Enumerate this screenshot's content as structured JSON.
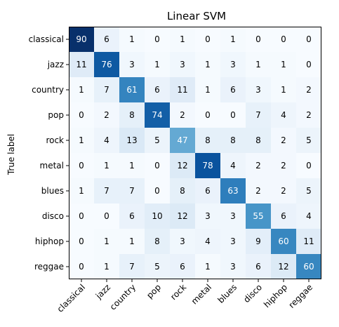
{
  "chart_data": {
    "type": "heatmap",
    "title": "Linear SVM",
    "ylabel": "True label",
    "xlabel": "",
    "colormap": "Blues",
    "text_threshold": 45,
    "x_categories": [
      "classical",
      "jazz",
      "country",
      "pop",
      "rock",
      "metal",
      "blues",
      "disco",
      "hiphop",
      "reggae"
    ],
    "y_categories": [
      "classical",
      "jazz",
      "country",
      "pop",
      "rock",
      "metal",
      "blues",
      "disco",
      "hiphop",
      "reggae"
    ],
    "values": [
      [
        90,
        6,
        1,
        0,
        1,
        0,
        1,
        0,
        0,
        0
      ],
      [
        11,
        76,
        3,
        1,
        3,
        1,
        3,
        1,
        1,
        0
      ],
      [
        1,
        7,
        61,
        6,
        11,
        1,
        6,
        3,
        1,
        2
      ],
      [
        0,
        2,
        8,
        74,
        2,
        0,
        0,
        7,
        4,
        2
      ],
      [
        1,
        4,
        13,
        5,
        47,
        8,
        8,
        8,
        2,
        5
      ],
      [
        0,
        1,
        1,
        0,
        12,
        78,
        4,
        2,
        2,
        0
      ],
      [
        1,
        7,
        7,
        0,
        8,
        6,
        63,
        2,
        2,
        5
      ],
      [
        0,
        0,
        6,
        10,
        12,
        3,
        3,
        55,
        6,
        4
      ],
      [
        0,
        1,
        1,
        8,
        3,
        4,
        3,
        9,
        60,
        11
      ],
      [
        0,
        1,
        7,
        5,
        6,
        1,
        3,
        6,
        12,
        60
      ]
    ],
    "vmin": 0,
    "vmax": 90
  }
}
